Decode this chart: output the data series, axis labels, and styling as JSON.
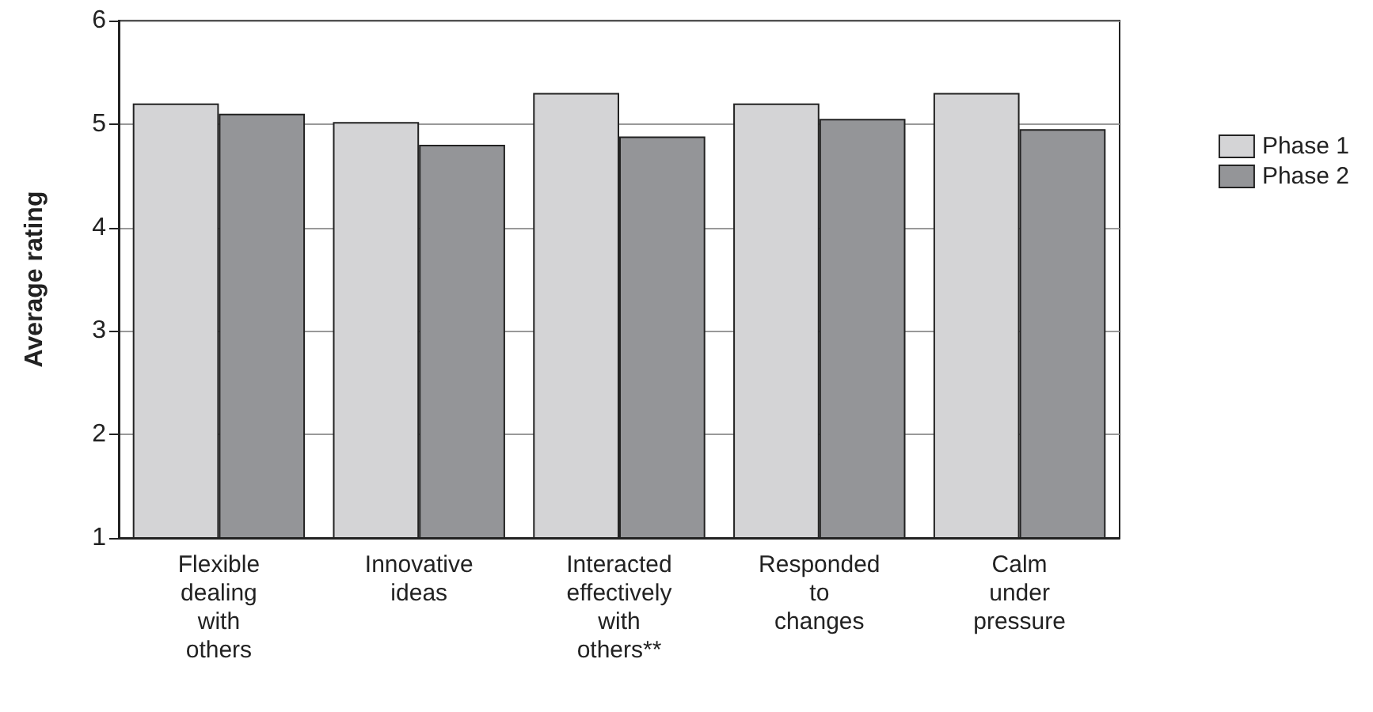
{
  "chart_data": {
    "type": "bar",
    "ylabel": "Average rating",
    "categories": [
      "Flexible\ndealing\nwith\nothers",
      "Innovative\nideas",
      "Interacted\neffectively\nwith\nothers**",
      "Responded\nto\nchanges",
      "Calm\nunder\npressure"
    ],
    "series": [
      {
        "name": "Phase 1",
        "color": "#d4d4d6",
        "values": [
          5.2,
          5.02,
          5.3,
          5.2,
          5.3
        ]
      },
      {
        "name": "Phase 2",
        "color": "#949598",
        "values": [
          5.1,
          4.8,
          4.88,
          5.05,
          4.95
        ]
      }
    ],
    "ylim": [
      1,
      6
    ],
    "yticks": [
      1,
      2,
      3,
      4,
      5,
      6
    ],
    "grid": "y",
    "legend": "right"
  }
}
